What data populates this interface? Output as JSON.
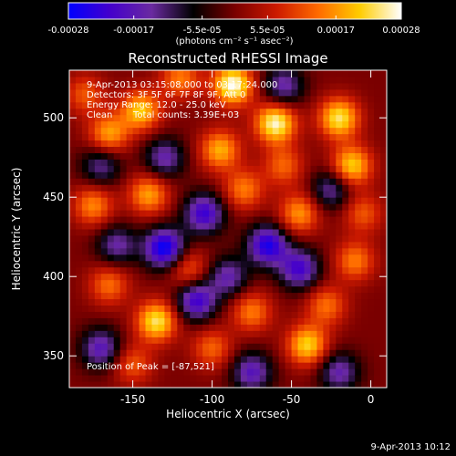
{
  "chart_data": {
    "type": "heatmap",
    "title": "Reconstructed RHESSI Image",
    "xlabel": "Heliocentric X (arcsec)",
    "ylabel": "Heliocentric Y (arcsec)",
    "xlim": [
      -190,
      10
    ],
    "ylim": [
      330,
      530
    ],
    "xticks": [
      -150,
      -100,
      -50,
      0
    ],
    "yticks": [
      350,
      400,
      450,
      500
    ],
    "colorbar": {
      "ticks": [
        "-0.00028",
        "-0.00017",
        "-5.5e-05",
        "5.5e-05",
        "0.00017",
        "0.00028"
      ],
      "tick_values": [
        -0.00028,
        -0.00017,
        -5.5e-05,
        5.5e-05,
        0.00017,
        0.00028
      ],
      "units": "(photons cm⁻² s⁻¹ asec⁻²)",
      "colormap": [
        "#0000ff",
        "#4400cc",
        "#6a2aa0",
        "#000000",
        "#7a0000",
        "#cc1a00",
        "#ff6a00",
        "#ffcc00",
        "#ffffff"
      ]
    },
    "annotations": {
      "time": "9-Apr-2013 03:15:08.000 to 03:17:24.000",
      "detectors": "Detectors: 3F 5F 6F 7F 8F 9F, Att 0",
      "energy": "Energy Range: 12.0 - 25.0 keV",
      "method": "Clean",
      "counts": "Total counts: 3.39E+03",
      "peak": "Position of Peak = [-87,521]"
    },
    "hotspots": [
      {
        "x": -87,
        "y": 521,
        "v": 0.00028
      },
      {
        "x": -60,
        "y": 497,
        "v": 0.00027
      },
      {
        "x": -20,
        "y": 500,
        "v": 0.00024
      },
      {
        "x": -12,
        "y": 470,
        "v": 0.00022
      },
      {
        "x": -145,
        "y": 505,
        "v": 0.00021
      },
      {
        "x": -165,
        "y": 490,
        "v": 0.00018
      },
      {
        "x": -175,
        "y": 445,
        "v": 0.00016
      },
      {
        "x": -140,
        "y": 452,
        "v": 0.00018
      },
      {
        "x": -95,
        "y": 480,
        "v": 0.00019
      },
      {
        "x": -80,
        "y": 455,
        "v": 0.00015
      },
      {
        "x": -45,
        "y": 440,
        "v": 0.00017
      },
      {
        "x": -10,
        "y": 410,
        "v": 0.00015
      },
      {
        "x": -135,
        "y": 372,
        "v": 0.00024
      },
      {
        "x": -165,
        "y": 395,
        "v": 0.00014
      },
      {
        "x": -115,
        "y": 405,
        "v": 0.00013
      },
      {
        "x": -75,
        "y": 378,
        "v": 0.00015
      },
      {
        "x": -100,
        "y": 355,
        "v": 0.00013
      },
      {
        "x": -40,
        "y": 357,
        "v": 0.00022
      },
      {
        "x": -28,
        "y": 382,
        "v": 0.00014
      },
      {
        "x": -150,
        "y": 345,
        "v": 0.00012
      },
      {
        "x": -55,
        "y": 470,
        "v": 0.00013
      },
      {
        "x": -180,
        "y": 515,
        "v": 0.00012
      },
      {
        "x": -120,
        "y": 525,
        "v": 0.00015
      },
      {
        "x": -5,
        "y": 440,
        "v": 0.00012
      }
    ],
    "coldspots": [
      {
        "x": -130,
        "y": 418,
        "v": -0.00028
      },
      {
        "x": -105,
        "y": 440,
        "v": -0.00022
      },
      {
        "x": -110,
        "y": 385,
        "v": -0.00022
      },
      {
        "x": -65,
        "y": 420,
        "v": -0.00025
      },
      {
        "x": -45,
        "y": 405,
        "v": -0.00021
      },
      {
        "x": -170,
        "y": 355,
        "v": -0.00018
      },
      {
        "x": -130,
        "y": 475,
        "v": -0.00016
      },
      {
        "x": -75,
        "y": 340,
        "v": -0.00018
      },
      {
        "x": -20,
        "y": 340,
        "v": -0.00016
      },
      {
        "x": -170,
        "y": 470,
        "v": -0.00014
      },
      {
        "x": -25,
        "y": 455,
        "v": -0.00015
      },
      {
        "x": -55,
        "y": 520,
        "v": -0.00016
      },
      {
        "x": -160,
        "y": 420,
        "v": -0.00015
      },
      {
        "x": -90,
        "y": 400,
        "v": -0.00016
      }
    ]
  },
  "footer": {
    "timestamp": "9-Apr-2013 10:12"
  }
}
